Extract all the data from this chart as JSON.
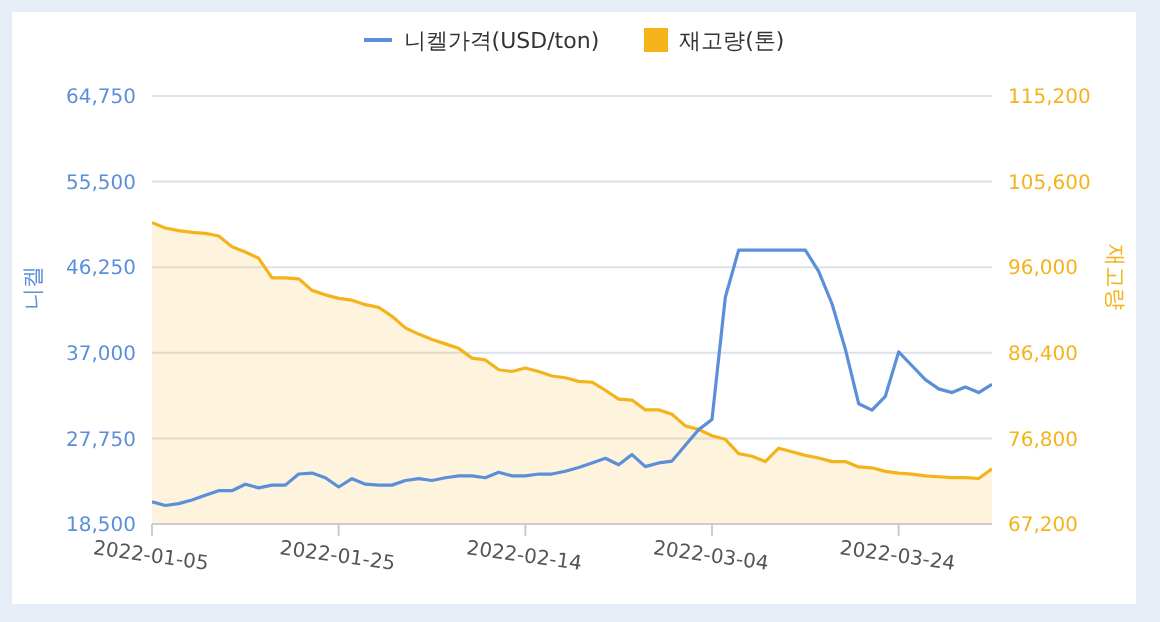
{
  "chart_data": {
    "type": "line",
    "categories": [
      "2022-01-05",
      null,
      null,
      null,
      null,
      null,
      null,
      null,
      null,
      null,
      null,
      null,
      null,
      null,
      "2022-01-25",
      null,
      null,
      null,
      null,
      null,
      null,
      null,
      null,
      null,
      null,
      null,
      null,
      null,
      "2022-02-14",
      null,
      null,
      null,
      null,
      null,
      null,
      null,
      null,
      null,
      null,
      null,
      null,
      null,
      "2022-03-04",
      null,
      null,
      null,
      null,
      null,
      null,
      null,
      null,
      null,
      null,
      null,
      null,
      null,
      "2022-03-24",
      null,
      null,
      null,
      null,
      null,
      null,
      null
    ],
    "series": [
      {
        "name": "니켈가격(USD/ton)",
        "color": "#5b8fd9",
        "values": [
          20900,
          20500,
          20700,
          21100,
          21600,
          22100,
          22100,
          22800,
          22400,
          22700,
          22700,
          23900,
          24000,
          23500,
          22500,
          23400,
          22800,
          22700,
          22700,
          23200,
          23400,
          23200,
          23500,
          23700,
          23700,
          23500,
          24100,
          23700,
          23700,
          23900,
          23900,
          24200,
          24600,
          25100,
          25600,
          24900,
          26000,
          24700,
          25100,
          25300,
          27000,
          28700,
          29800,
          43000,
          48100,
          48100,
          48100,
          48100,
          48100,
          48100,
          45800,
          42300,
          37400,
          31500,
          30800,
          32300,
          37100,
          35600,
          34100,
          33100,
          32700,
          33300,
          32700,
          33600
        ]
      },
      {
        "name": "재고량(톤)",
        "type": "area",
        "axis": "y2",
        "color": "#f5b31b",
        "values": [
          101000,
          100400,
          100100,
          99900,
          99800,
          99500,
          98300,
          97700,
          97000,
          94800,
          94800,
          94700,
          93400,
          92900,
          92500,
          92300,
          91800,
          91500,
          90500,
          89200,
          88500,
          87900,
          87400,
          86900,
          85800,
          85600,
          84500,
          84300,
          84700,
          84300,
          83800,
          83600,
          83200,
          83100,
          82200,
          81200,
          81100,
          80000,
          80000,
          79500,
          78200,
          77800,
          77100,
          76700,
          75100,
          74800,
          74200,
          75700,
          75300,
          74900,
          74600,
          74200,
          74200,
          73600,
          73500,
          73100,
          72900,
          72800,
          72600,
          72500,
          72400,
          72400,
          72300,
          73400
        ]
      }
    ],
    "ylabel": "니켈",
    "y2label": "재고량",
    "ylim": [
      18500,
      64750
    ],
    "yticks": [
      {
        "value": 18500,
        "label": "18,500"
      },
      {
        "value": 27750,
        "label": "27,750"
      },
      {
        "value": 37000,
        "label": "37,000"
      },
      {
        "value": 46250,
        "label": "46,250"
      },
      {
        "value": 55500,
        "label": "55,500"
      },
      {
        "value": 64750,
        "label": "64,750"
      }
    ],
    "y2lim": [
      67200,
      115200
    ],
    "y2ticks": [
      {
        "value": 67200,
        "label": "67,200"
      },
      {
        "value": 76800,
        "label": "76,800"
      },
      {
        "value": 86400,
        "label": "86,400"
      },
      {
        "value": 96000,
        "label": "96,000"
      },
      {
        "value": 105600,
        "label": "105,600"
      },
      {
        "value": 115200,
        "label": "115,200"
      }
    ],
    "grid": "y",
    "legend": "top",
    "marker": "none"
  }
}
